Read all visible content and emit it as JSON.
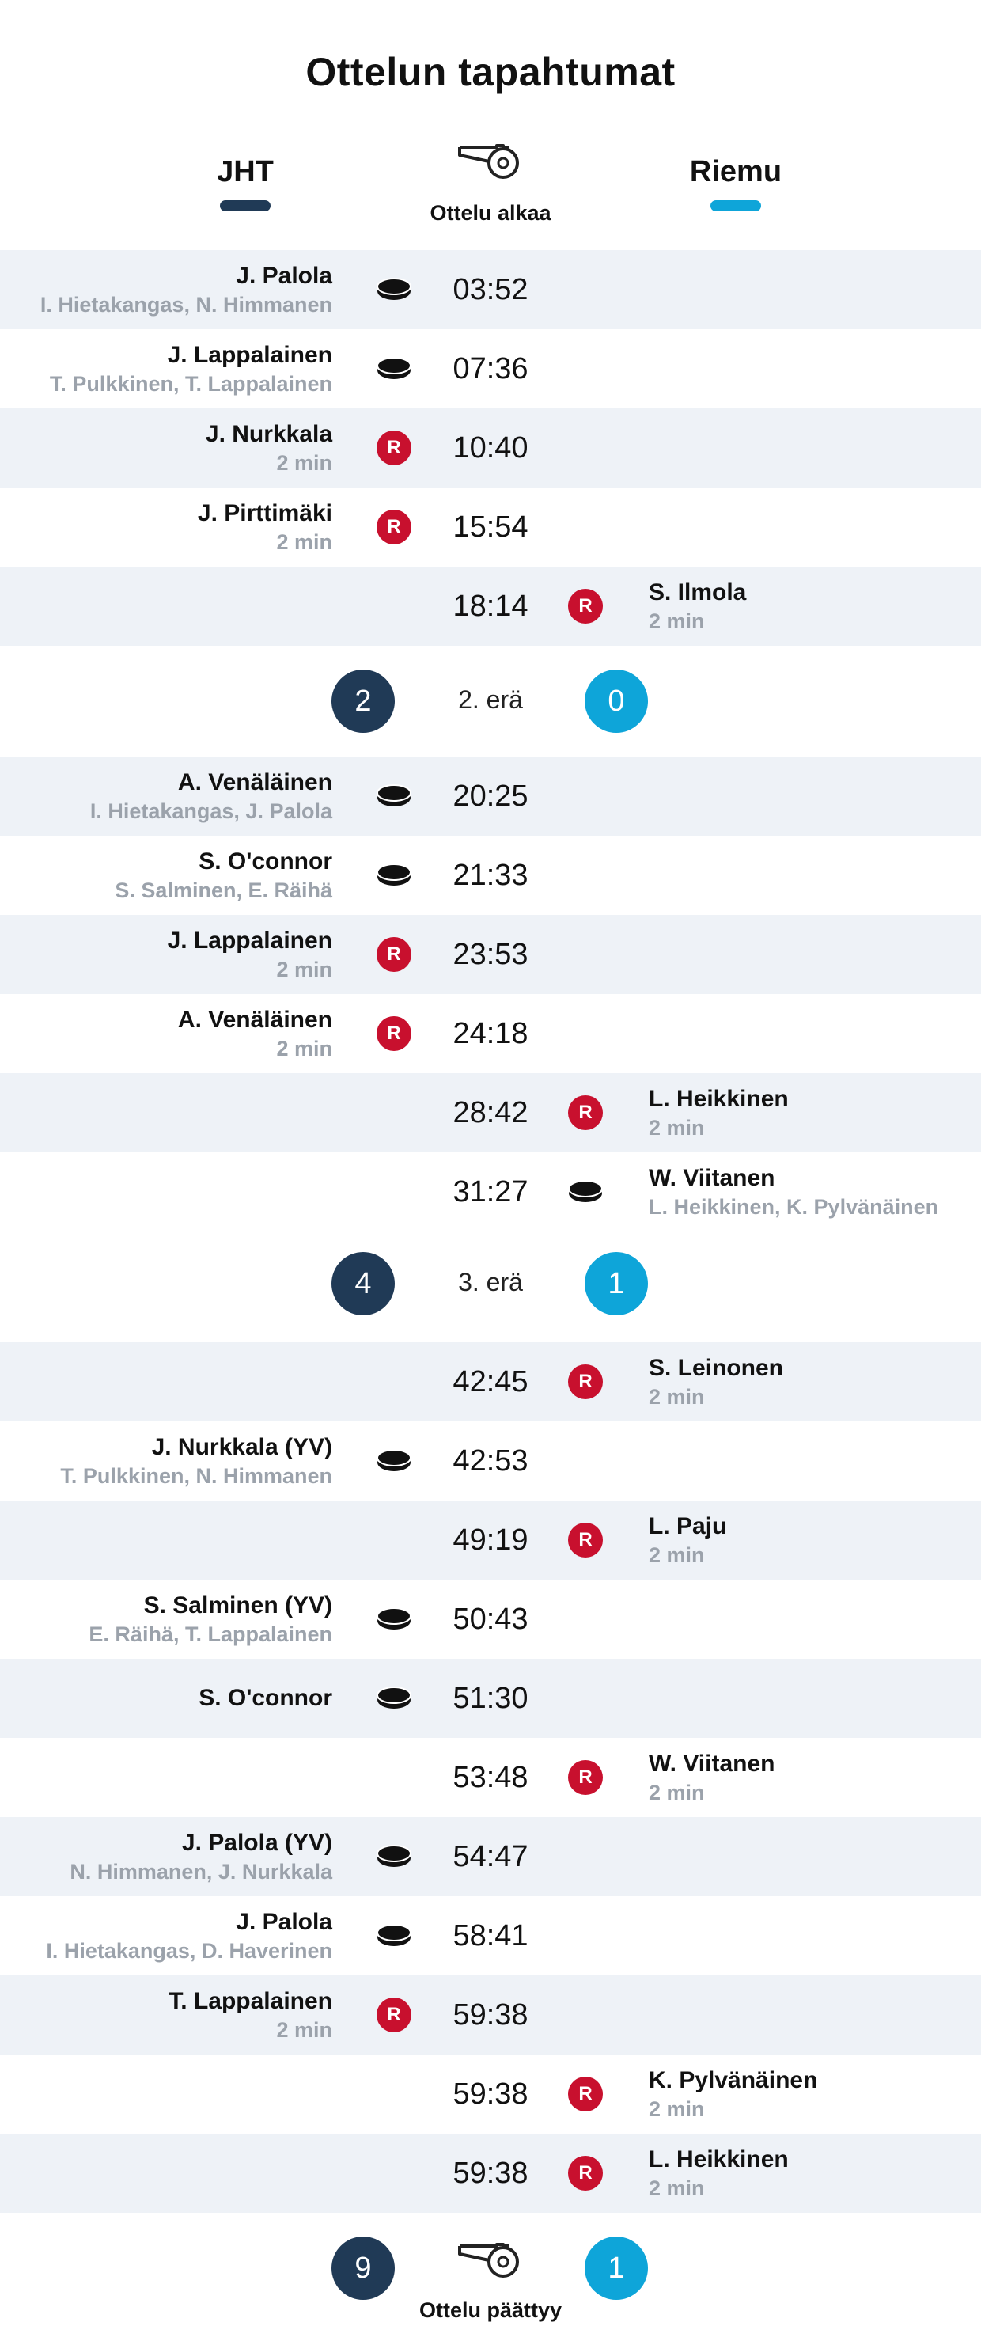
{
  "title": "Ottelun tapahtumat",
  "teams": {
    "home": "JHT",
    "away": "Riemu"
  },
  "colors": {
    "home": "#203a56",
    "away": "#0ea5d9",
    "penalty": "#c8102e",
    "row_shade": "#eef2f7"
  },
  "start_caption": "Ottelu alkaa",
  "end_caption": "Ottelu päättyy",
  "penalty_badge": "R",
  "period_separators": [
    {
      "label": "2. erä",
      "home_score": "2",
      "away_score": "0"
    },
    {
      "label": "3. erä",
      "home_score": "4",
      "away_score": "1"
    }
  ],
  "final_score": {
    "home": "9",
    "away": "1"
  },
  "events": [
    {
      "time": "03:52",
      "side": "home",
      "type": "goal",
      "player": "J. Palola",
      "detail": "I. Hietakangas, N. Himmanen"
    },
    {
      "time": "07:36",
      "side": "home",
      "type": "goal",
      "player": "J. Lappalainen",
      "detail": "T. Pulkkinen, T. Lappalainen"
    },
    {
      "time": "10:40",
      "side": "home",
      "type": "penalty",
      "player": "J. Nurkkala",
      "detail": "2 min"
    },
    {
      "time": "15:54",
      "side": "home",
      "type": "penalty",
      "player": "J. Pirttimäki",
      "detail": "2 min"
    },
    {
      "time": "18:14",
      "side": "away",
      "type": "penalty",
      "player": "S. Ilmola",
      "detail": "2 min"
    },
    {
      "time": "20:25",
      "side": "home",
      "type": "goal",
      "player": "A. Venäläinen",
      "detail": "I. Hietakangas, J. Palola"
    },
    {
      "time": "21:33",
      "side": "home",
      "type": "goal",
      "player": "S. O'connor",
      "detail": "S. Salminen, E. Räihä"
    },
    {
      "time": "23:53",
      "side": "home",
      "type": "penalty",
      "player": "J. Lappalainen",
      "detail": "2 min"
    },
    {
      "time": "24:18",
      "side": "home",
      "type": "penalty",
      "player": "A. Venäläinen",
      "detail": "2 min"
    },
    {
      "time": "28:42",
      "side": "away",
      "type": "penalty",
      "player": "L. Heikkinen",
      "detail": "2 min"
    },
    {
      "time": "31:27",
      "side": "away",
      "type": "goal",
      "player": "W. Viitanen",
      "detail": "L. Heikkinen, K. Pylvänäinen"
    },
    {
      "time": "42:45",
      "side": "away",
      "type": "penalty",
      "player": "S. Leinonen",
      "detail": "2 min"
    },
    {
      "time": "42:53",
      "side": "home",
      "type": "goal",
      "player": "J. Nurkkala (YV)",
      "detail": "T. Pulkkinen, N. Himmanen"
    },
    {
      "time": "49:19",
      "side": "away",
      "type": "penalty",
      "player": "L. Paju",
      "detail": "2 min"
    },
    {
      "time": "50:43",
      "side": "home",
      "type": "goal",
      "player": "S. Salminen (YV)",
      "detail": "E. Räihä, T. Lappalainen"
    },
    {
      "time": "51:30",
      "side": "home",
      "type": "goal",
      "player": "S. O'connor",
      "detail": ""
    },
    {
      "time": "53:48",
      "side": "away",
      "type": "penalty",
      "player": "W. Viitanen",
      "detail": "2 min"
    },
    {
      "time": "54:47",
      "side": "home",
      "type": "goal",
      "player": "J. Palola (YV)",
      "detail": "N. Himmanen, J. Nurkkala"
    },
    {
      "time": "58:41",
      "side": "home",
      "type": "goal",
      "player": "J. Palola",
      "detail": "I. Hietakangas, D. Haverinen"
    },
    {
      "time": "59:38",
      "side": "home",
      "type": "penalty",
      "player": "T. Lappalainen",
      "detail": "2 min"
    },
    {
      "time": "59:38",
      "side": "away",
      "type": "penalty",
      "player": "K. Pylvänäinen",
      "detail": "2 min"
    },
    {
      "time": "59:38",
      "side": "away",
      "type": "penalty",
      "player": "L. Heikkinen",
      "detail": "2 min"
    }
  ]
}
